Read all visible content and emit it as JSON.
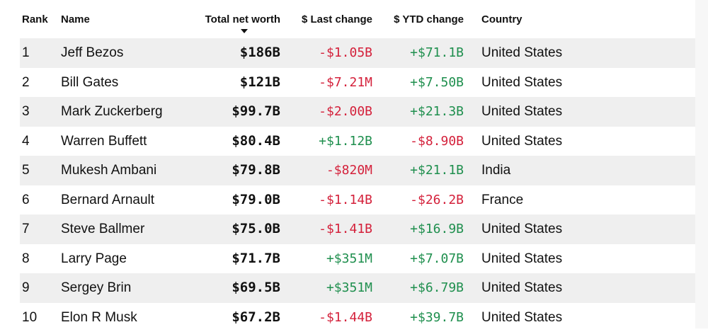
{
  "table": {
    "headers": {
      "rank": "Rank",
      "name": "Name",
      "net_worth": "Total net worth",
      "last_change": "$ Last change",
      "ytd_change": "$ YTD change",
      "country": "Country"
    },
    "sort": {
      "column": "net_worth",
      "direction": "descending",
      "icon": "sort-descending-icon"
    },
    "colors": {
      "negative": "#d4213b",
      "positive": "#1f8f4e",
      "row_shade": "#efefef"
    },
    "rows": [
      {
        "rank": "1",
        "name": "Jeff Bezos",
        "net_worth": "$186B",
        "last_change": "-$1.05B",
        "ytd_change": "+$71.1B",
        "country": "United States"
      },
      {
        "rank": "2",
        "name": "Bill Gates",
        "net_worth": "$121B",
        "last_change": "-$7.21M",
        "ytd_change": "+$7.50B",
        "country": "United States"
      },
      {
        "rank": "3",
        "name": "Mark Zuckerberg",
        "net_worth": "$99.7B",
        "last_change": "-$2.00B",
        "ytd_change": "+$21.3B",
        "country": "United States"
      },
      {
        "rank": "4",
        "name": "Warren Buffett",
        "net_worth": "$80.4B",
        "last_change": "+$1.12B",
        "ytd_change": "-$8.90B",
        "country": "United States"
      },
      {
        "rank": "5",
        "name": "Mukesh Ambani",
        "net_worth": "$79.8B",
        "last_change": "-$820M",
        "ytd_change": "+$21.1B",
        "country": "India"
      },
      {
        "rank": "6",
        "name": "Bernard Arnault",
        "net_worth": "$79.0B",
        "last_change": "-$1.14B",
        "ytd_change": "-$26.2B",
        "country": "France"
      },
      {
        "rank": "7",
        "name": "Steve Ballmer",
        "net_worth": "$75.0B",
        "last_change": "-$1.41B",
        "ytd_change": "+$16.9B",
        "country": "United States"
      },
      {
        "rank": "8",
        "name": "Larry Page",
        "net_worth": "$71.7B",
        "last_change": "+$351M",
        "ytd_change": "+$7.07B",
        "country": "United States"
      },
      {
        "rank": "9",
        "name": "Sergey Brin",
        "net_worth": "$69.5B",
        "last_change": "+$351M",
        "ytd_change": "+$6.79B",
        "country": "United States"
      },
      {
        "rank": "10",
        "name": "Elon R Musk",
        "net_worth": "$67.2B",
        "last_change": "-$1.44B",
        "ytd_change": "+$39.7B",
        "country": "United States"
      }
    ]
  }
}
